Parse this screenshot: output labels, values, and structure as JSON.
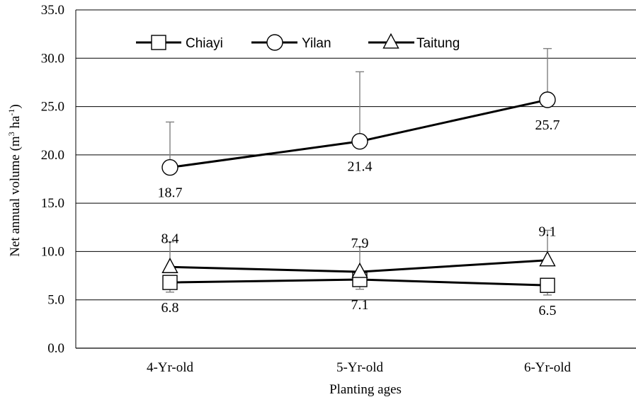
{
  "chart_data": {
    "type": "line",
    "categories": [
      "4-Yr-old",
      "5-Yr-old",
      "6-Yr-old"
    ],
    "xlabel": "Planting ages",
    "ylabel_main": "Net annual volume (m",
    "ylabel_sup1": "3",
    "ylabel_mid": " ha",
    "ylabel_sup2": "-1",
    "ylabel_end": ")",
    "ylim": [
      0,
      35
    ],
    "yticks": [
      "0.0",
      "5.0",
      "10.0",
      "15.0",
      "20.0",
      "25.0",
      "30.0",
      "35.0"
    ],
    "grid": true,
    "legend_position": "top-left",
    "series": [
      {
        "name": "Chiayi",
        "marker": "square",
        "values": [
          6.8,
          7.1,
          6.5
        ],
        "labels": [
          "6.8",
          "7.1",
          "6.5"
        ],
        "error_plus": [
          6.8,
          7.1,
          6.5
        ],
        "error_minus": [
          5.8,
          6.1,
          5.5
        ],
        "label_position": "below"
      },
      {
        "name": "Yilan",
        "marker": "circle",
        "values": [
          18.7,
          21.4,
          25.7
        ],
        "labels": [
          "18.7",
          "21.4",
          "25.7"
        ],
        "error_plus": [
          23.4,
          28.6,
          31.0
        ],
        "error_minus": [
          18.7,
          21.4,
          25.7
        ],
        "label_position": "below"
      },
      {
        "name": "Taitung",
        "marker": "triangle",
        "values": [
          8.4,
          7.9,
          9.1
        ],
        "labels": [
          "8.4",
          "7.9",
          "9.1"
        ],
        "error_plus": [
          11.0,
          10.5,
          12.2
        ],
        "error_minus": [
          8.4,
          7.9,
          9.1
        ],
        "label_position": "above"
      }
    ],
    "colors": {
      "line": "#000000",
      "error": "#808080",
      "grid": "#000000"
    }
  }
}
